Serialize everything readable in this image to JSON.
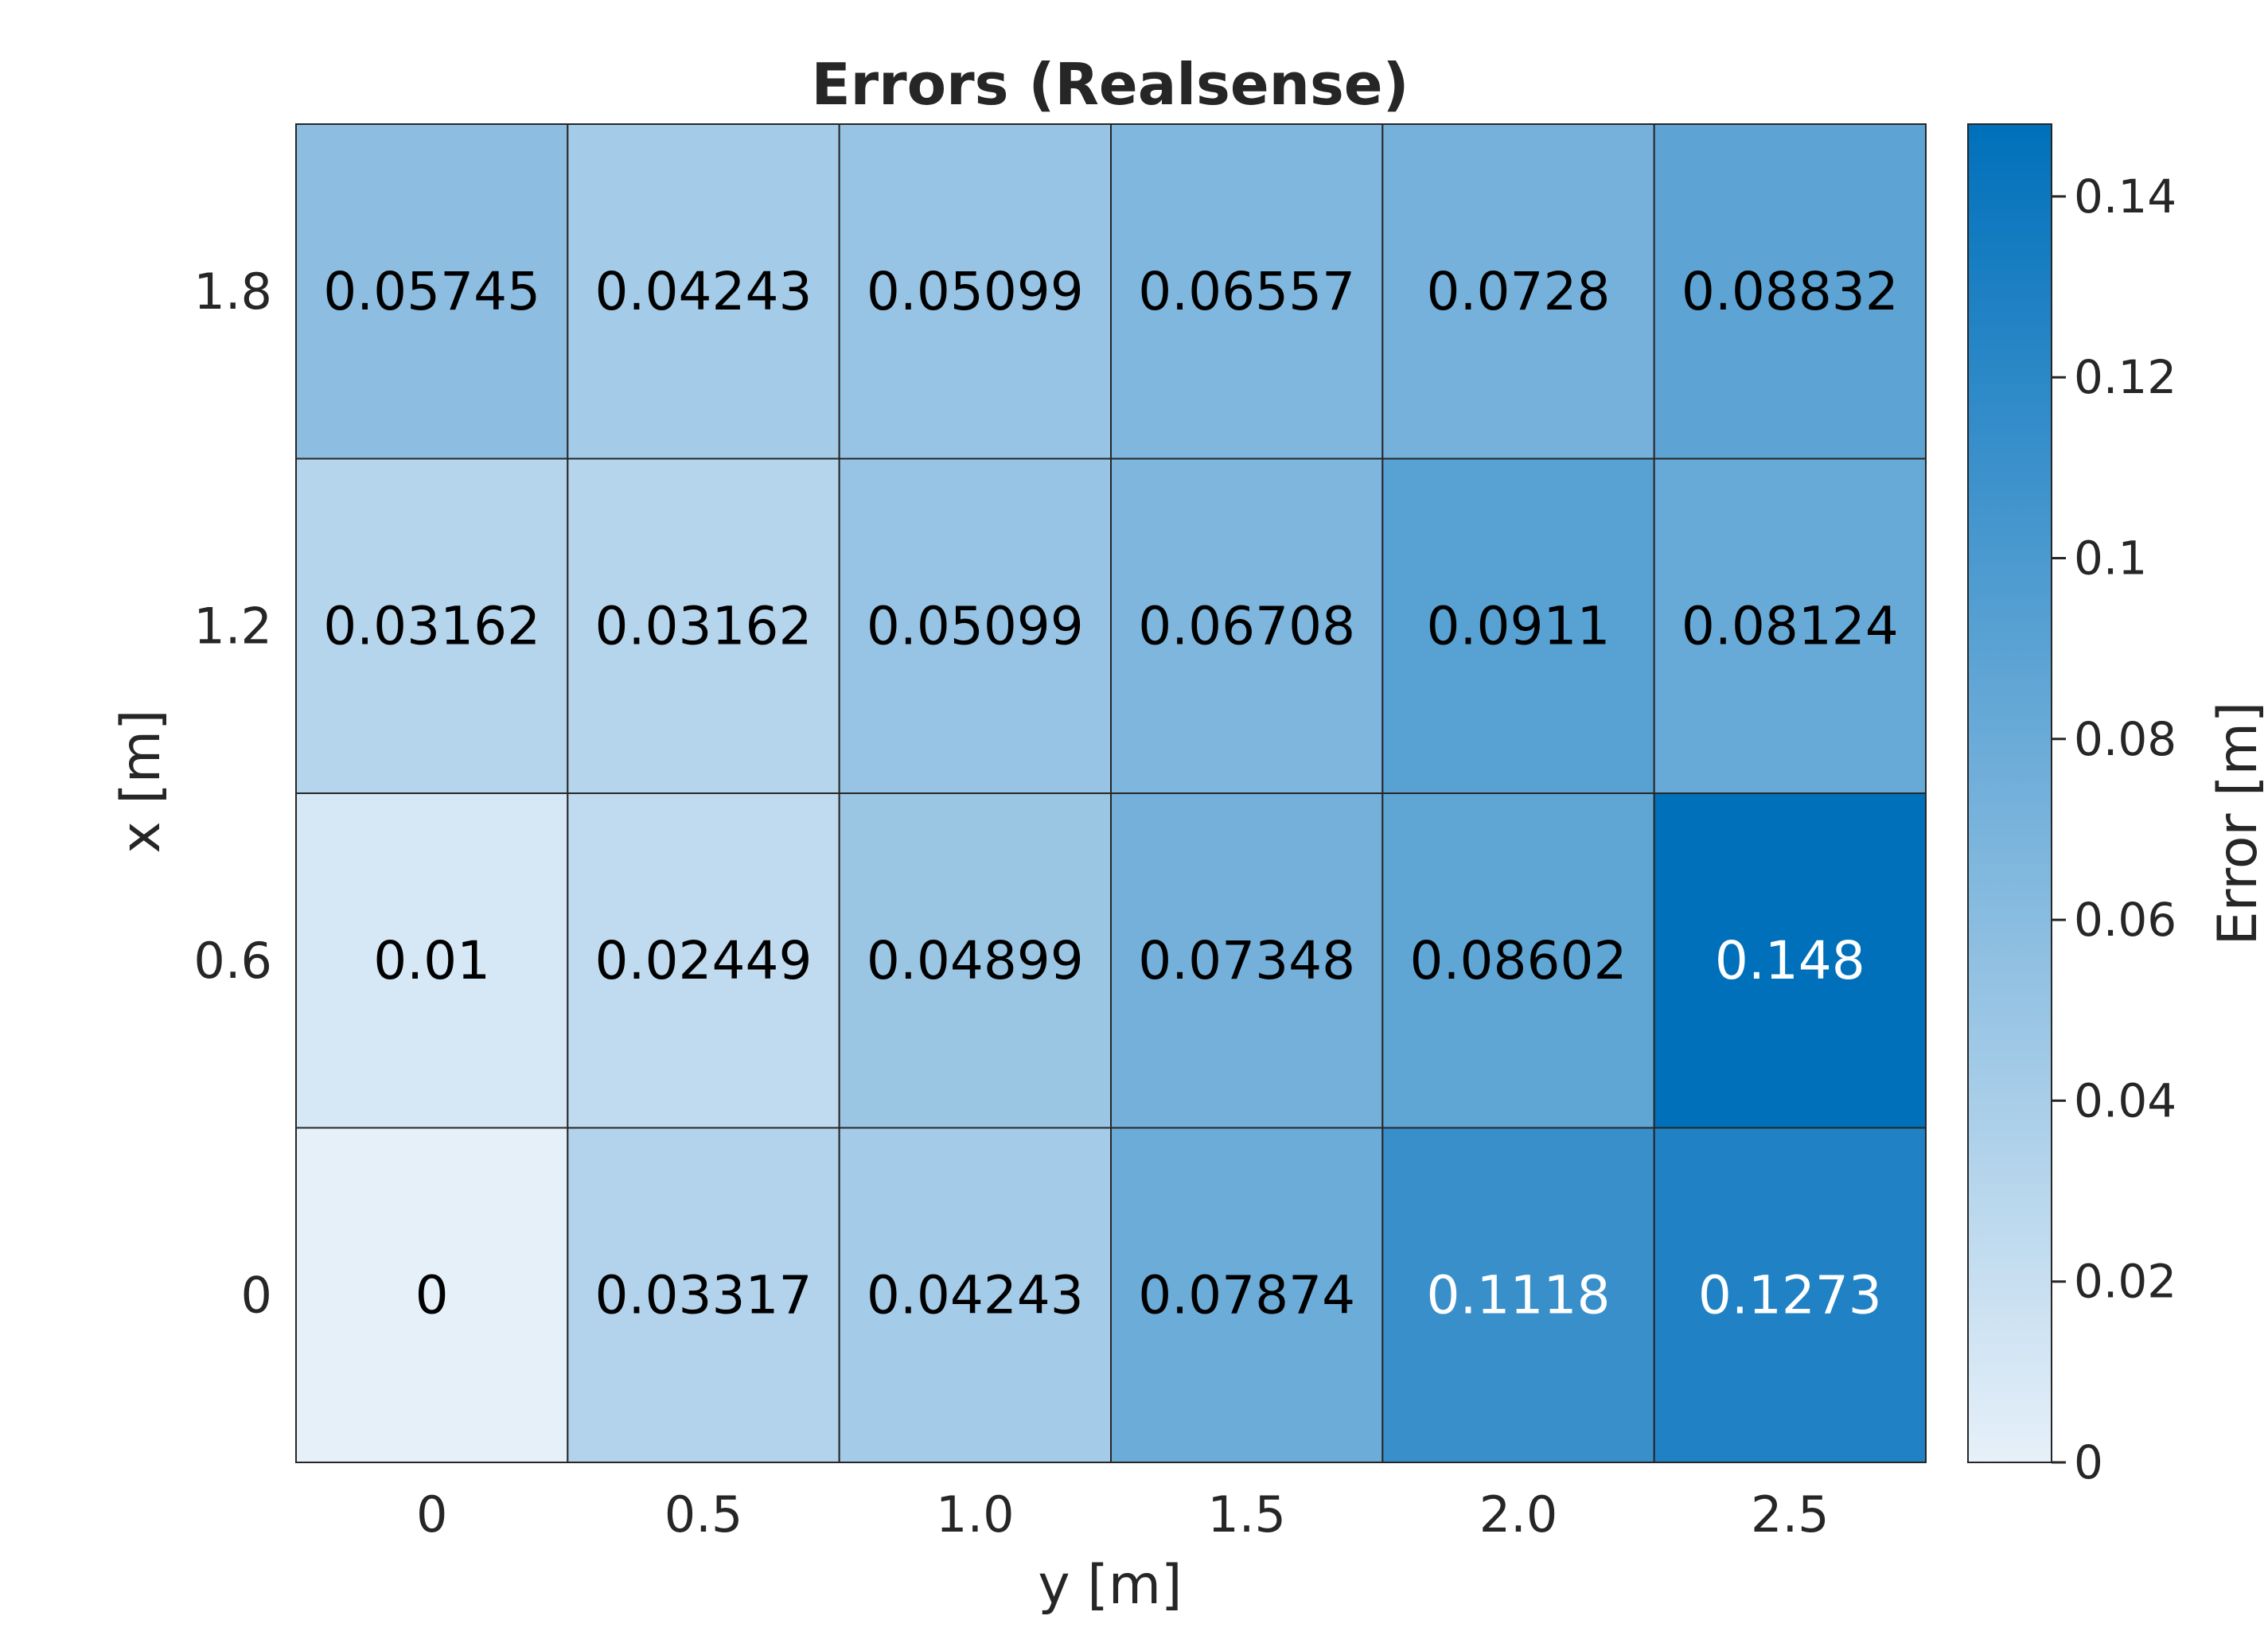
{
  "chart_data": {
    "type": "heatmap",
    "title": "Errors (Realsense)",
    "xlabel": "y [m]",
    "ylabel": "x [m]",
    "x_categories": [
      "0",
      "0.5",
      "1.0",
      "1.5",
      "2.0",
      "2.5"
    ],
    "y_categories": [
      "0",
      "0.6",
      "1.2",
      "1.8"
    ],
    "values": [
      [
        0,
        0.03317,
        0.04243,
        0.07874,
        0.1118,
        0.1273
      ],
      [
        0.01,
        0.02449,
        0.04899,
        0.07348,
        0.08602,
        0.148
      ],
      [
        0.03162,
        0.03162,
        0.05099,
        0.06708,
        0.0911,
        0.08124
      ],
      [
        0.05745,
        0.04243,
        0.05099,
        0.06557,
        0.0728,
        0.08832
      ]
    ],
    "cell_labels": [
      [
        "0",
        "0.03317",
        "0.04243",
        "0.07874",
        "0.1118",
        "0.1273"
      ],
      [
        "0.01",
        "0.02449",
        "0.04899",
        "0.07348",
        "0.08602",
        "0.148"
      ],
      [
        "0.03162",
        "0.03162",
        "0.05099",
        "0.06708",
        "0.0911",
        "0.08124"
      ],
      [
        "0.05745",
        "0.04243",
        "0.05099",
        "0.06557",
        "0.0728",
        "0.08832"
      ]
    ],
    "colorbar": {
      "label": "Error [m]",
      "range": [
        0,
        0.148
      ],
      "ticks": [
        0,
        0.02,
        0.04,
        0.06,
        0.08,
        0.1,
        0.12,
        0.14
      ],
      "tick_labels": [
        "0",
        "0.02",
        "0.04",
        "0.06",
        "0.08",
        "0.1",
        "0.12",
        "0.14"
      ],
      "color_low": "#e6f0f9",
      "color_high": "#0070bb"
    },
    "text_color_dark": "#000000",
    "text_color_light": "#ffffff",
    "grid_color": "#262626"
  }
}
